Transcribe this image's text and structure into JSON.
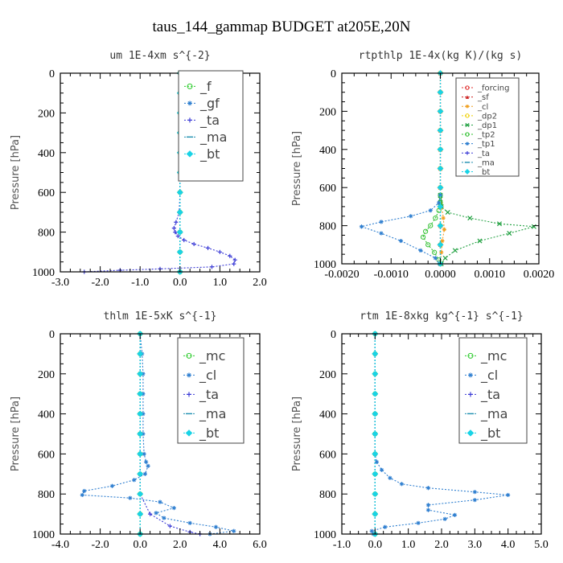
{
  "figure": {
    "title": "taus_144_gammap  BUDGET at205E,20N"
  },
  "chart_data": [
    {
      "id": "um",
      "type": "line",
      "title": "um  1E-4xm s^{-2}",
      "ylabel": "Pressure [hPa]",
      "xlim": [
        -3.0,
        2.0
      ],
      "ylim": [
        1000,
        0
      ],
      "xticks": [
        "-3.0",
        "-2.0",
        "-1.0",
        "0.0",
        "1.0",
        "2.0"
      ],
      "xtick_values": [
        -3,
        -2,
        -1,
        0,
        1,
        2
      ],
      "yticks": [
        "0",
        "200",
        "400",
        "600",
        "800",
        "1000"
      ],
      "ytick_values": [
        0,
        200,
        400,
        600,
        800,
        1000
      ],
      "legend": {
        "position": "top-right",
        "font_size": "large"
      },
      "series": [
        {
          "name": "_f",
          "color": "#2ecc2e",
          "marker": "circle",
          "x": [
            0,
            0,
            0,
            0,
            0,
            0,
            0,
            0,
            0,
            0,
            0
          ],
          "y": [
            0,
            100,
            200,
            300,
            400,
            500,
            600,
            700,
            800,
            900,
            1000
          ]
        },
        {
          "name": "_gf",
          "color": "#2f7fd0",
          "marker": "star",
          "x": [
            0,
            0,
            0,
            0,
            0,
            0,
            0,
            0,
            0,
            0,
            0
          ],
          "y": [
            0,
            100,
            200,
            300,
            400,
            500,
            600,
            700,
            800,
            900,
            1000
          ]
        },
        {
          "name": "_ta",
          "color": "#3b3bd6",
          "marker": "plus",
          "x": [
            0.0,
            0.0,
            0.0,
            0.0,
            0.0,
            0.0,
            0.0,
            -0.02,
            -0.1,
            -0.15,
            -0.12,
            -0.05,
            0.1,
            0.35,
            0.7,
            1.0,
            1.25,
            1.38,
            1.35,
            0.8,
            -0.5,
            -1.5,
            -2.4
          ],
          "y": [
            0,
            100,
            200,
            300,
            400,
            500,
            600,
            700,
            750,
            780,
            800,
            820,
            840,
            860,
            880,
            900,
            920,
            940,
            960,
            975,
            985,
            992,
            1000
          ]
        },
        {
          "name": "_ma",
          "color": "#1f8fb0",
          "marker": "dash",
          "x": [
            0,
            0,
            0,
            0,
            0,
            0,
            0,
            0,
            0,
            0,
            0
          ],
          "y": [
            0,
            100,
            200,
            300,
            400,
            500,
            600,
            700,
            800,
            900,
            1000
          ]
        },
        {
          "name": "_bt",
          "color": "#19d3e6",
          "marker": "diamond",
          "x": [
            0,
            0,
            0,
            0,
            0,
            0,
            0,
            0,
            0,
            0,
            0
          ],
          "y": [
            0,
            100,
            200,
            300,
            400,
            500,
            600,
            700,
            800,
            900,
            1000
          ]
        }
      ]
    },
    {
      "id": "rtpthlp",
      "type": "line",
      "title": "rtpthlp  1E-4x(kg K)/(kg s)",
      "ylabel": "Pressure [hPa]",
      "xlim": [
        -0.002,
        0.002
      ],
      "ylim": [
        1000,
        0
      ],
      "xticks": [
        "-0.0020",
        "-0.0010",
        "0.0000",
        "0.0010",
        "0.0020"
      ],
      "xtick_values": [
        -0.002,
        -0.001,
        0,
        0.001,
        0.002
      ],
      "yticks": [
        "0",
        "200",
        "400",
        "600",
        "800",
        "1000"
      ],
      "ytick_values": [
        0,
        200,
        400,
        600,
        800,
        1000
      ],
      "legend": {
        "position": "top-right",
        "font_size": "small"
      },
      "series": [
        {
          "name": "_forcing",
          "color": "#e03030",
          "marker": "circle",
          "x": [
            0,
            0,
            0,
            0,
            0,
            0,
            0,
            0,
            0,
            0,
            0
          ],
          "y": [
            0,
            100,
            200,
            300,
            400,
            500,
            600,
            700,
            800,
            900,
            1000
          ]
        },
        {
          "name": "_sf",
          "color": "#cc2020",
          "marker": "triangle",
          "x": [
            0,
            0,
            0,
            0,
            0,
            0,
            0,
            0,
            0,
            0,
            0
          ],
          "y": [
            0,
            100,
            200,
            300,
            400,
            500,
            600,
            700,
            800,
            900,
            1000
          ]
        },
        {
          "name": "_cl",
          "color": "#f0a020",
          "marker": "star",
          "x": [
            0,
            0,
            0,
            0,
            0,
            0,
            0,
            3e-05,
            6e-05,
            8e-05,
            4e-05,
            2e-05,
            0
          ],
          "y": [
            0,
            100,
            200,
            300,
            400,
            500,
            600,
            700,
            760,
            820,
            880,
            940,
            1000
          ]
        },
        {
          "name": "_dp2",
          "color": "#f0d000",
          "marker": "circle",
          "x": [
            0,
            0,
            0,
            0,
            0,
            0,
            0,
            0,
            0,
            0,
            0
          ],
          "y": [
            0,
            100,
            200,
            300,
            400,
            500,
            600,
            700,
            800,
            900,
            1000
          ]
        },
        {
          "name": "_dp1",
          "color": "#20a040",
          "marker": "cross",
          "x": [
            0.0,
            0.0,
            0.0,
            2e-05,
            0.00015,
            0.0006,
            0.0012,
            0.0019,
            0.0014,
            0.0008,
            0.0003,
            0.0001,
            2e-05
          ],
          "y": [
            640,
            660,
            680,
            700,
            730,
            760,
            790,
            805,
            840,
            880,
            930,
            970,
            1000
          ]
        },
        {
          "name": "_tp2",
          "color": "#30c030",
          "marker": "circle",
          "x": [
            0.0,
            0.0,
            -3e-05,
            -0.0001,
            -0.0002,
            -0.0003,
            -0.00035,
            -0.00025,
            -0.00012,
            -3e-05,
            0.0
          ],
          "y": [
            640,
            680,
            720,
            760,
            800,
            830,
            860,
            900,
            940,
            980,
            1000
          ]
        },
        {
          "name": "_tp1",
          "color": "#2f7fd0",
          "marker": "star",
          "x": [
            0.0,
            -3e-05,
            -0.0002,
            -0.0006,
            -0.0012,
            -0.0016,
            -0.0012,
            -0.0008,
            -0.0004,
            -0.0001,
            -2e-05
          ],
          "y": [
            640,
            680,
            720,
            750,
            780,
            805,
            840,
            880,
            930,
            970,
            1000
          ]
        },
        {
          "name": "_ta",
          "color": "#3b3bd6",
          "marker": "plus",
          "x": [
            0,
            0,
            0,
            0,
            0,
            0,
            0,
            0,
            0,
            0,
            0
          ],
          "y": [
            0,
            100,
            200,
            300,
            400,
            500,
            600,
            700,
            800,
            900,
            1000
          ]
        },
        {
          "name": "_ma",
          "color": "#1f8fb0",
          "marker": "dash",
          "x": [
            0,
            0,
            0,
            0,
            0,
            0,
            0,
            0,
            0,
            0,
            0
          ],
          "y": [
            0,
            100,
            200,
            300,
            400,
            500,
            600,
            700,
            800,
            900,
            1000
          ]
        },
        {
          "name": "_bt",
          "color": "#19d3e6",
          "marker": "diamond",
          "x": [
            0,
            0,
            0,
            0,
            0,
            0,
            0,
            0,
            0,
            0,
            0
          ],
          "y": [
            0,
            100,
            200,
            300,
            400,
            500,
            600,
            700,
            800,
            900,
            1000
          ]
        }
      ]
    },
    {
      "id": "thlm",
      "type": "line",
      "title": "thlm  1E-5xK s^{-1}",
      "ylabel": "Pressure [hPa]",
      "xlim": [
        -4.0,
        6.0
      ],
      "ylim": [
        1000,
        0
      ],
      "xticks": [
        "-4.0",
        "-2.0",
        "0.0",
        "2.0",
        "4.0",
        "6.0"
      ],
      "xtick_values": [
        -4,
        -2,
        0,
        2,
        4,
        6
      ],
      "yticks": [
        "0",
        "200",
        "400",
        "600",
        "800",
        "1000"
      ],
      "ytick_values": [
        0,
        200,
        400,
        600,
        800,
        1000
      ],
      "legend": {
        "position": "top-right",
        "font_size": "large"
      },
      "series": [
        {
          "name": "_mc",
          "color": "#2ecc2e",
          "marker": "circle",
          "x": [
            0,
            0,
            0,
            0,
            0,
            0,
            0,
            0,
            0,
            0,
            0
          ],
          "y": [
            0,
            100,
            200,
            300,
            400,
            500,
            600,
            700,
            800,
            900,
            1000
          ]
        },
        {
          "name": "_cl",
          "color": "#2f7fd0",
          "marker": "star",
          "x": [
            0.0,
            0.1,
            0.15,
            0.15,
            0.15,
            0.15,
            0.2,
            0.3,
            0.4,
            0.25,
            -0.3,
            -1.4,
            -2.8,
            -2.9,
            -0.5,
            1.0,
            1.7,
            0.8,
            1.2,
            2.5,
            3.8,
            4.7,
            3.5
          ],
          "y": [
            0,
            100,
            200,
            300,
            400,
            500,
            600,
            640,
            660,
            700,
            730,
            760,
            785,
            805,
            820,
            840,
            870,
            895,
            920,
            945,
            965,
            985,
            1000
          ]
        },
        {
          "name": "_ta",
          "color": "#3b3bd6",
          "marker": "plus",
          "x": [
            0,
            0,
            0,
            0,
            0,
            0,
            0,
            0,
            0,
            0.5,
            1.5,
            2.5,
            3.0
          ],
          "y": [
            0,
            100,
            200,
            300,
            400,
            500,
            600,
            700,
            800,
            900,
            960,
            990,
            1000
          ]
        },
        {
          "name": "_ma",
          "color": "#1f8fb0",
          "marker": "dash",
          "x": [
            0,
            0,
            0,
            0,
            0,
            0,
            0,
            0,
            0,
            0,
            0
          ],
          "y": [
            0,
            100,
            200,
            300,
            400,
            500,
            600,
            700,
            800,
            900,
            1000
          ]
        },
        {
          "name": "_bt",
          "color": "#19d3e6",
          "marker": "diamond",
          "x": [
            0,
            0,
            0,
            0,
            0,
            0,
            0,
            0,
            0,
            0,
            0
          ],
          "y": [
            0,
            100,
            200,
            300,
            400,
            500,
            600,
            700,
            800,
            900,
            1000
          ]
        }
      ]
    },
    {
      "id": "rtm",
      "type": "line",
      "title": "rtm  1E-8xkg kg^{-1} s^{-1}",
      "ylabel": "Pressure [hPa]",
      "xlim": [
        -1.0,
        5.0
      ],
      "ylim": [
        1000,
        0
      ],
      "xticks": [
        "-1.0",
        "0.0",
        "1.0",
        "2.0",
        "3.0",
        "4.0",
        "5.0"
      ],
      "xtick_values": [
        -1,
        0,
        1,
        2,
        3,
        4,
        5
      ],
      "yticks": [
        "0",
        "200",
        "400",
        "600",
        "800",
        "1000"
      ],
      "ytick_values": [
        0,
        200,
        400,
        600,
        800,
        1000
      ],
      "legend": {
        "position": "top-right",
        "font_size": "large"
      },
      "series": [
        {
          "name": "_mc",
          "color": "#2ecc2e",
          "marker": "circle",
          "x": [
            0,
            0,
            0,
            0,
            0,
            0,
            0,
            0,
            0,
            0,
            0
          ],
          "y": [
            0,
            100,
            200,
            300,
            400,
            500,
            600,
            700,
            800,
            900,
            1000
          ]
        },
        {
          "name": "_cl",
          "color": "#2f7fd0",
          "marker": "star",
          "x": [
            0.0,
            0.0,
            0.0,
            0.0,
            0.0,
            0.0,
            0.0,
            0.05,
            0.2,
            0.45,
            0.8,
            1.6,
            3.0,
            4.0,
            3.0,
            1.6,
            1.6,
            2.4,
            2.1,
            1.3,
            0.3,
            -0.1,
            -0.05
          ],
          "y": [
            0,
            100,
            200,
            300,
            400,
            500,
            600,
            640,
            680,
            720,
            750,
            770,
            790,
            805,
            830,
            855,
            880,
            905,
            925,
            945,
            965,
            985,
            1000
          ]
        },
        {
          "name": "_ta",
          "color": "#3b3bd6",
          "marker": "plus",
          "x": [
            0,
            0,
            0,
            0,
            0,
            0,
            0,
            0,
            0,
            0,
            0
          ],
          "y": [
            0,
            100,
            200,
            300,
            400,
            500,
            600,
            700,
            800,
            900,
            1000
          ]
        },
        {
          "name": "_ma",
          "color": "#1f8fb0",
          "marker": "dash",
          "x": [
            0,
            0,
            0,
            0,
            0,
            0,
            0,
            0,
            0,
            0,
            0
          ],
          "y": [
            0,
            100,
            200,
            300,
            400,
            500,
            600,
            700,
            800,
            900,
            1000
          ]
        },
        {
          "name": "_bt",
          "color": "#19d3e6",
          "marker": "diamond",
          "x": [
            0,
            0,
            0,
            0,
            0,
            0,
            0,
            0,
            0,
            0,
            0
          ],
          "y": [
            0,
            100,
            200,
            300,
            400,
            500,
            600,
            700,
            800,
            900,
            1000
          ]
        }
      ]
    }
  ]
}
